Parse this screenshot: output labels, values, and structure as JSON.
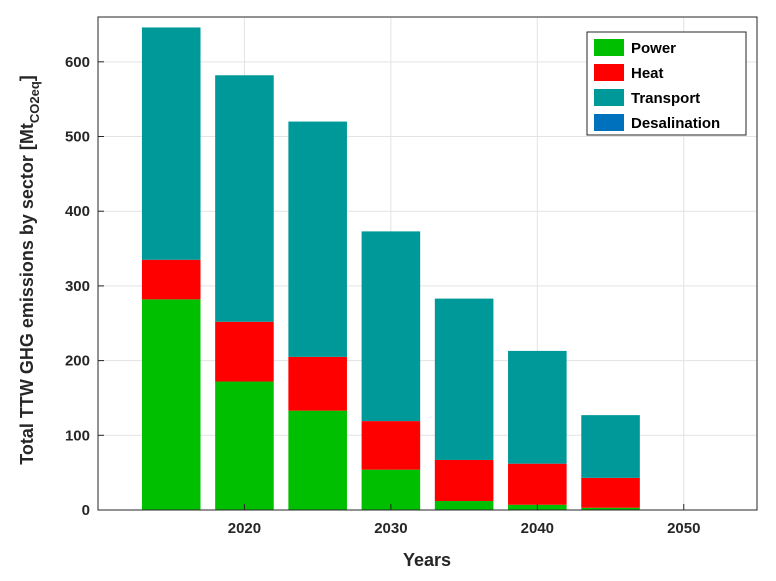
{
  "chart_data": {
    "type": "bar",
    "stacked": true,
    "x": [
      2015,
      2020,
      2025,
      2030,
      2035,
      2040,
      2045,
      2050
    ],
    "xlim": [
      2010,
      2055
    ],
    "ylim": [
      0,
      660
    ],
    "xticks": [
      2020,
      2030,
      2040,
      2050
    ],
    "yticks": [
      0,
      100,
      200,
      300,
      400,
      500,
      600
    ],
    "xlabel": "Years",
    "ylabel": "Total TTW GHG emissions by sector [Mt",
    "ylabel_subscript": "CO2eq",
    "ylabel_suffix": "]",
    "grid": true,
    "legend_position": "top-right",
    "series": [
      {
        "name": "Power",
        "color": "#00bf00",
        "values": [
          282,
          172,
          133,
          54,
          12,
          7,
          3,
          0
        ]
      },
      {
        "name": "Heat",
        "color": "#ff0000",
        "values": [
          53,
          80,
          72,
          65,
          55,
          55,
          40,
          0
        ]
      },
      {
        "name": "Transport",
        "color": "#009999",
        "values": [
          311,
          330,
          315,
          254,
          216,
          151,
          84,
          0
        ]
      },
      {
        "name": "Desalination",
        "color": "#0072bd",
        "values": [
          0,
          0,
          0,
          0,
          0,
          0,
          0,
          0
        ]
      }
    ]
  }
}
